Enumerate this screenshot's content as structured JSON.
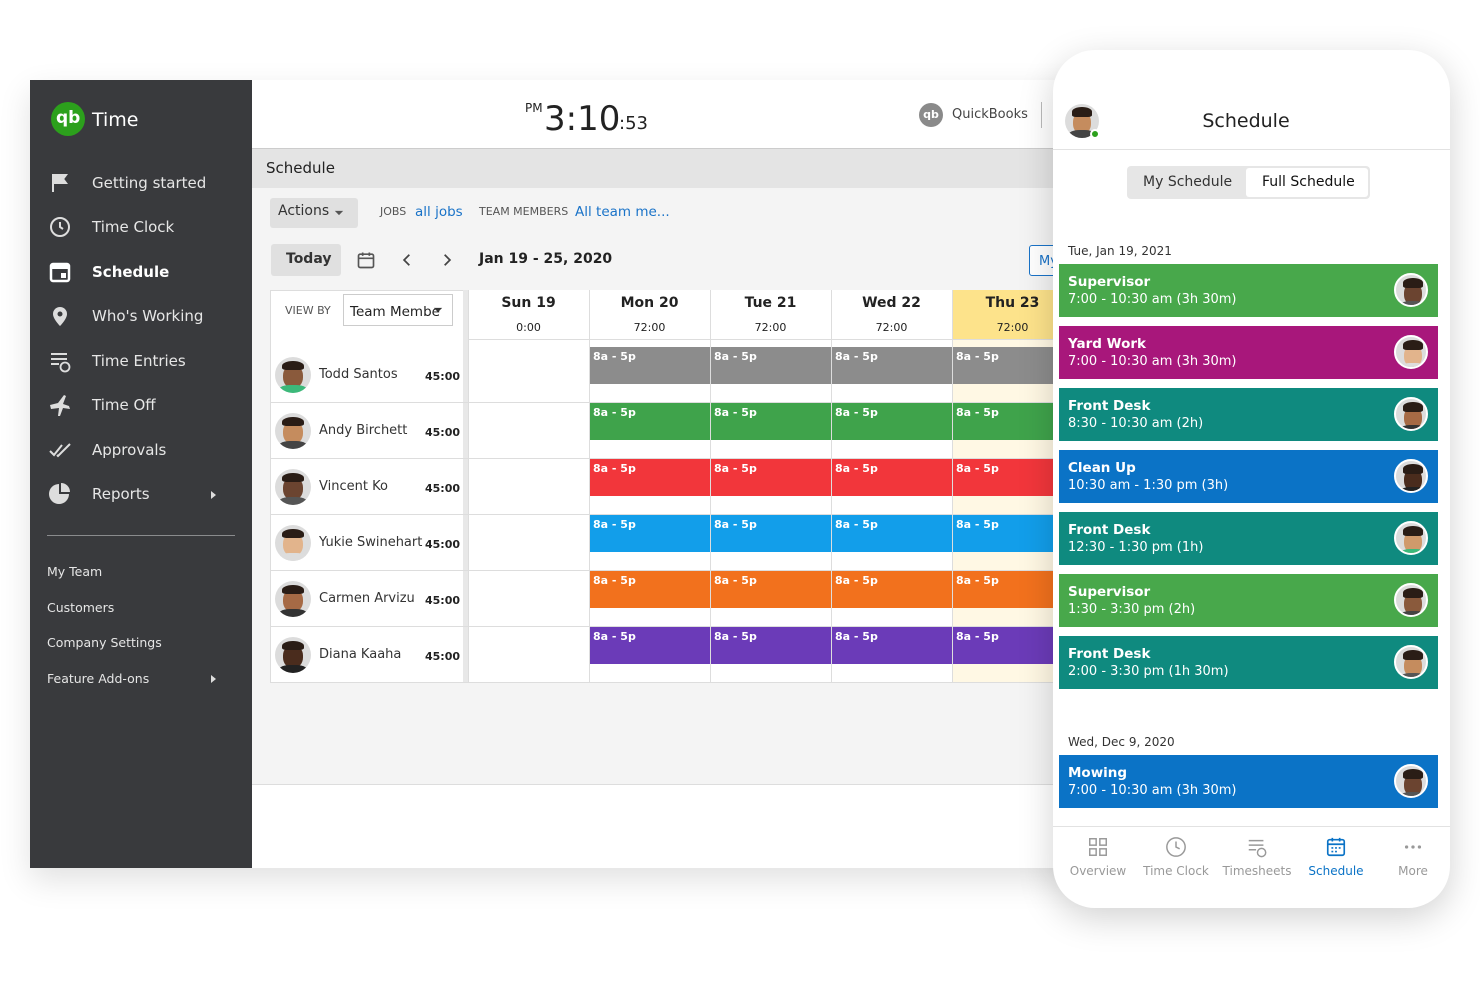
{
  "desktop": {
    "app": {
      "logo": "qb",
      "name": "Time"
    },
    "nav": [
      "Getting started",
      "Time Clock",
      "Schedule",
      "Who's Working",
      "Time Entries",
      "Time Off",
      "Approvals",
      "Reports"
    ],
    "secondary_nav": [
      "My Team",
      "Customers",
      "Company Settings",
      "Feature Add-ons"
    ],
    "header": {
      "ampm": "PM",
      "time": "3:10",
      "seconds": ":53",
      "brand": "QuickBooks"
    },
    "schedule": {
      "title": "Schedule",
      "actions": "Actions",
      "jobs_label": "JOBS",
      "jobs_value": "all jobs",
      "team_label": "TEAM MEMBERS",
      "team_value": "All team me...",
      "today": "Today",
      "date_range": "Jan 19 - 25, 2020",
      "my_button": "My",
      "view_by_label": "VIEW BY",
      "view_by_value": "Team Membe",
      "days": [
        {
          "name": "Sun 19",
          "total": "0:00"
        },
        {
          "name": "Mon 20",
          "total": "72:00"
        },
        {
          "name": "Tue 21",
          "total": "72:00"
        },
        {
          "name": "Wed 22",
          "total": "72:00"
        },
        {
          "name": "Thu 23",
          "total": "72:00"
        }
      ],
      "members": [
        {
          "name": "Todd Santos",
          "hours": "45:00",
          "color": "#8c8c8c",
          "shifts": [
            "8a - 5p",
            "8a - 5p",
            "8a - 5p",
            "8a - 5p"
          ]
        },
        {
          "name": "Andy Birchett",
          "hours": "45:00",
          "color": "#3fa34b",
          "shifts": [
            "8a - 5p",
            "8a - 5p",
            "8a - 5p",
            "8a - 5p"
          ]
        },
        {
          "name": "Vincent Ko",
          "hours": "45:00",
          "color": "#f2363b",
          "shifts": [
            "8a - 5p",
            "8a - 5p",
            "8a - 5p",
            "8a - 5p"
          ]
        },
        {
          "name": "Yukie Swinehart",
          "hours": "45:00",
          "color": "#129eea",
          "shifts": [
            "8a - 5p",
            "8a - 5p",
            "8a - 5p",
            "8a - 5p"
          ]
        },
        {
          "name": "Carmen Arvizu",
          "hours": "45:00",
          "color": "#f2711d",
          "shifts": [
            "8a - 5p",
            "8a - 5p",
            "8a - 5p",
            "8a - 5p"
          ]
        },
        {
          "name": "Diana Kaaha",
          "hours": "45:00",
          "color": "#6b3bb8",
          "shifts": [
            "8a - 5p",
            "8a - 5p",
            "8a - 5p",
            "8a - 5p"
          ]
        }
      ]
    }
  },
  "mobile": {
    "title": "Schedule",
    "tabs": [
      "My Schedule",
      "Full Schedule"
    ],
    "groups": [
      {
        "date": "Tue, Jan 19, 2021",
        "items": [
          {
            "title": "Supervisor",
            "time": "7:00 - 10:30 am (3h 30m)",
            "color": "#48a84b"
          },
          {
            "title": "Yard Work",
            "time": "7:00 - 10:30 am (3h 30m)",
            "color": "#a8177b"
          },
          {
            "title": "Front Desk",
            "time": "8:30 - 10:30 am (2h)",
            "color": "#0f8a7f"
          },
          {
            "title": "Clean Up",
            "time": "10:30 am - 1:30 pm (3h)",
            "color": "#0b73c6"
          },
          {
            "title": "Front Desk",
            "time": "12:30 - 1:30 pm (1h)",
            "color": "#0f8a7f"
          },
          {
            "title": "Supervisor",
            "time": "1:30 - 3:30 pm (2h)",
            "color": "#48a84b"
          },
          {
            "title": "Front Desk",
            "time": "2:00 - 3:30 pm (1h 30m)",
            "color": "#0f8a7f"
          }
        ]
      },
      {
        "date": "Wed, Dec 9, 2020",
        "items": [
          {
            "title": "Mowing",
            "time": "7:00 - 10:30 am (3h 30m)",
            "color": "#0b73c6"
          }
        ]
      }
    ],
    "bottom_nav": [
      "Overview",
      "Time Clock",
      "Timesheets",
      "Schedule",
      "More"
    ]
  }
}
